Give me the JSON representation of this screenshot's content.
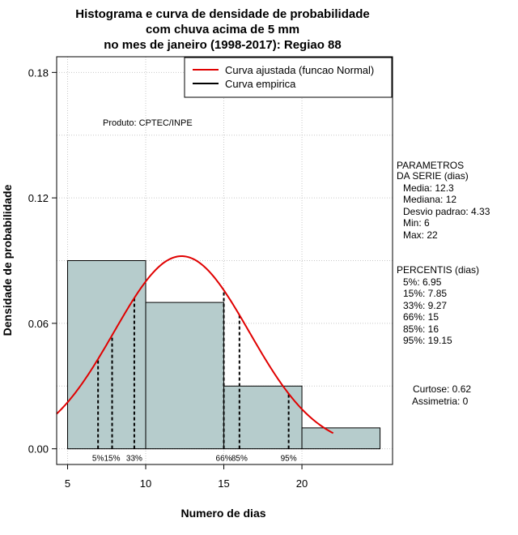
{
  "chart_data": {
    "type": "bar",
    "title_lines": [
      "Histograma e curva de densidade de probabilidade",
      "com chuva acima de 5 mm",
      "no mes de janeiro (1998-2017): Regiao 88"
    ],
    "xlabel": "Numero de dias",
    "ylabel": "Densidade de probabilidade",
    "xlim": [
      4.3,
      25.8
    ],
    "ylim": [
      -0.0075,
      0.1875
    ],
    "x_ticks": [
      5,
      10,
      15,
      20
    ],
    "y_ticks": [
      0.0,
      0.06,
      0.12,
      0.18
    ],
    "y_tick_labels": [
      "0.00",
      "0.06",
      "0.12",
      "0.18"
    ],
    "grid": true,
    "bins": [
      {
        "start": 5,
        "end": 10,
        "density": 0.09
      },
      {
        "start": 10,
        "end": 15,
        "density": 0.07
      },
      {
        "start": 15,
        "end": 20,
        "density": 0.03
      },
      {
        "start": 20,
        "end": 25,
        "density": 0.01
      }
    ],
    "bar_color": "#b6cccc",
    "normal_curve": {
      "mean": 12.3,
      "sd": 4.33,
      "x_from": 4.3,
      "x_to": 22,
      "color": "#e00000"
    },
    "percentiles": [
      {
        "label": "5%",
        "value": 6.95
      },
      {
        "label": "15%",
        "value": 7.85
      },
      {
        "label": "33%",
        "value": 9.27
      },
      {
        "label": "66%",
        "value": 15
      },
      {
        "label": "85%",
        "value": 16
      },
      {
        "label": "95%",
        "value": 19.15
      }
    ],
    "legend": {
      "position": "top-right",
      "entries": [
        {
          "label": "Curva ajustada (funcao Normal)",
          "color": "#e00000"
        },
        {
          "label": "Curva empirica",
          "color": "#000000"
        }
      ]
    },
    "annotation": "Produto: CPTEC/INPE"
  },
  "side_panel": {
    "params_title": [
      "PARAMETROS",
      "DA SERIE (dias)"
    ],
    "params": [
      "Media: 12.3",
      "Mediana: 12",
      "Desvio padrao: 4.33",
      "Min: 6",
      "Max: 22"
    ],
    "pct_title": "PERCENTIS (dias)",
    "pct_lines": [
      "5%: 6.95",
      "15%: 7.85",
      "33%: 9.27",
      "66%: 15",
      "85%: 16",
      "95%: 19.15"
    ],
    "curtose": "Curtose: 0.62",
    "assimetria": "Assimetria: 0"
  }
}
